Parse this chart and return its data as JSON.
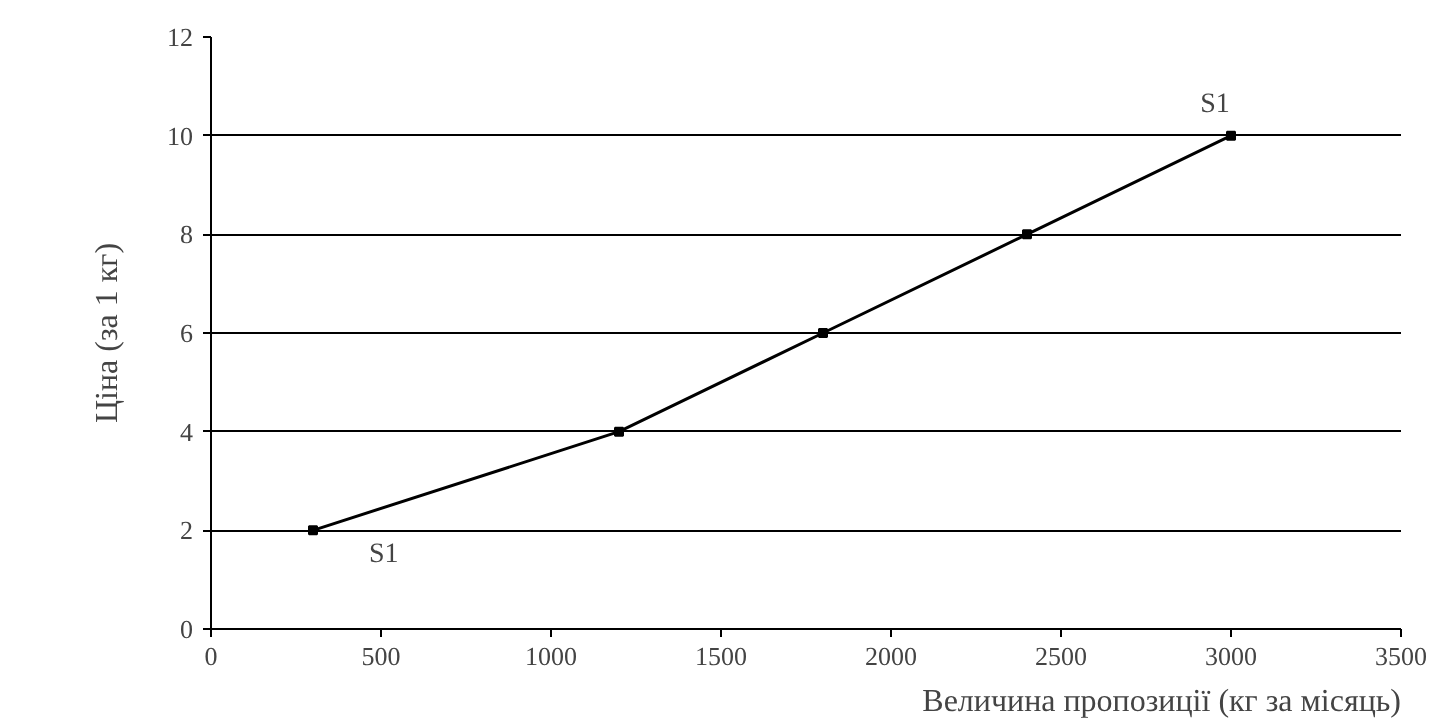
{
  "chart_data": {
    "type": "line",
    "xlabel": "Величина пропозиції (кг за місяць)",
    "ylabel": "Ціна (за 1 кг)",
    "x": [
      300,
      1200,
      1800,
      2400,
      3000
    ],
    "series": [
      {
        "color": "#000000",
        "values": [
          2,
          4,
          6,
          8,
          10
        ]
      }
    ],
    "xlim": [
      0,
      3500
    ],
    "xticks": [
      0,
      500,
      1000,
      1500,
      2000,
      2500,
      3000,
      3500
    ],
    "ylim": [
      0,
      12
    ],
    "yticks": [
      0,
      2,
      4,
      6,
      8,
      10,
      12
    ],
    "grid": "y",
    "marker": "square",
    "line_style": "solid",
    "annotations": [
      {
        "text": "S1",
        "x": 300,
        "y": 2
      },
      {
        "text": "S1",
        "x": 3000,
        "y": 10
      }
    ]
  }
}
